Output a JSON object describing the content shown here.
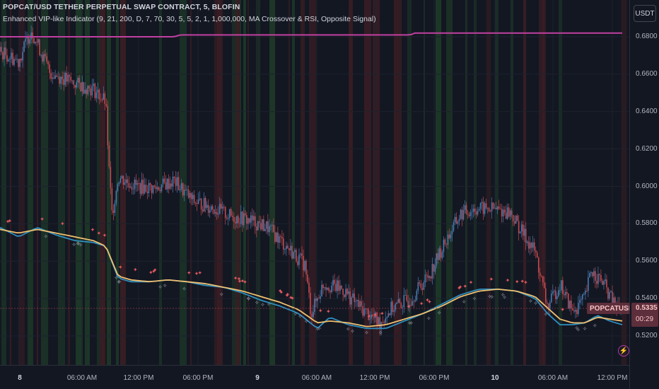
{
  "header": {
    "symbol_title": "POPCAT/USD TETHER PERPETUAL SWAP CONTRACT, 5, BLOFIN",
    "indicator_title": "Enhanced VIP-like Indicator (9, 21, 200, D, 7, 70, 30, 5, 5, 2, 1, 1,000,000, MA Crossover & RSI, Opposite Signal)"
  },
  "currency_button": "USDT",
  "price_axis": {
    "ticks": [
      "0.6800",
      "0.6600",
      "0.6400",
      "0.6200",
      "0.6000",
      "0.5800",
      "0.5600",
      "0.5400",
      "0.5200"
    ],
    "last_price": "0.5335",
    "countdown": "00:29"
  },
  "symbol_label": "POPCATUSDT.P",
  "time_axis": {
    "labels": [
      {
        "text": "8",
        "day": true
      },
      {
        "text": "06:00 AM",
        "day": false
      },
      {
        "text": "12:00 PM",
        "day": false
      },
      {
        "text": "06:00 PM",
        "day": false
      },
      {
        "text": "9",
        "day": true
      },
      {
        "text": "06:00 AM",
        "day": false
      },
      {
        "text": "12:00 PM",
        "day": false
      },
      {
        "text": "06:00 PM",
        "day": false
      },
      {
        "text": "10",
        "day": true
      },
      {
        "text": "06:00 AM",
        "day": false
      },
      {
        "text": "12:00 PM",
        "day": false
      }
    ]
  },
  "colors": {
    "background": "#131722",
    "candle_up": "#4a7ab0",
    "candle_down": "#c04a50",
    "ma_fast": "#2f8fc0",
    "ma_slow": "#f0c070",
    "ma_long": "#c040a0",
    "bg_green": "#1e3a28",
    "bg_red": "#3a1e24"
  },
  "chart_data": {
    "type": "candlestick",
    "y_range": [
      0.51,
      0.69
    ],
    "close_path": [
      [
        0,
        0.672
      ],
      [
        0.03,
        0.667
      ],
      [
        0.05,
        0.684
      ],
      [
        0.08,
        0.661
      ],
      [
        0.12,
        0.655
      ],
      [
        0.15,
        0.652
      ],
      [
        0.17,
        0.645
      ],
      [
        0.175,
        0.61
      ],
      [
        0.18,
        0.585
      ],
      [
        0.19,
        0.605
      ],
      [
        0.22,
        0.6
      ],
      [
        0.25,
        0.599
      ],
      [
        0.28,
        0.603
      ],
      [
        0.31,
        0.592
      ],
      [
        0.34,
        0.589
      ],
      [
        0.37,
        0.584
      ],
      [
        0.4,
        0.582
      ],
      [
        0.43,
        0.578
      ],
      [
        0.46,
        0.568
      ],
      [
        0.49,
        0.558
      ],
      [
        0.5,
        0.532
      ],
      [
        0.52,
        0.548
      ],
      [
        0.55,
        0.545
      ],
      [
        0.58,
        0.535
      ],
      [
        0.61,
        0.527
      ],
      [
        0.63,
        0.535
      ],
      [
        0.66,
        0.54
      ],
      [
        0.69,
        0.553
      ],
      [
        0.72,
        0.573
      ],
      [
        0.74,
        0.585
      ],
      [
        0.76,
        0.588
      ],
      [
        0.79,
        0.588
      ],
      [
        0.82,
        0.586
      ],
      [
        0.84,
        0.575
      ],
      [
        0.86,
        0.565
      ],
      [
        0.88,
        0.535
      ],
      [
        0.9,
        0.548
      ],
      [
        0.92,
        0.533
      ],
      [
        0.94,
        0.54
      ],
      [
        0.95,
        0.555
      ],
      [
        0.97,
        0.548
      ],
      [
        0.99,
        0.535
      ],
      [
        1.0,
        0.534
      ]
    ],
    "ma_fast_path": [
      [
        0,
        0.578
      ],
      [
        0.03,
        0.573
      ],
      [
        0.06,
        0.578
      ],
      [
        0.09,
        0.574
      ],
      [
        0.12,
        0.571
      ],
      [
        0.15,
        0.57
      ],
      [
        0.17,
        0.568
      ],
      [
        0.19,
        0.551
      ],
      [
        0.21,
        0.549
      ],
      [
        0.24,
        0.549
      ],
      [
        0.27,
        0.55
      ],
      [
        0.3,
        0.549
      ],
      [
        0.33,
        0.547
      ],
      [
        0.36,
        0.546
      ],
      [
        0.39,
        0.543
      ],
      [
        0.42,
        0.539
      ],
      [
        0.45,
        0.536
      ],
      [
        0.48,
        0.532
      ],
      [
        0.51,
        0.524
      ],
      [
        0.53,
        0.53
      ],
      [
        0.56,
        0.526
      ],
      [
        0.59,
        0.524
      ],
      [
        0.62,
        0.524
      ],
      [
        0.65,
        0.528
      ],
      [
        0.68,
        0.532
      ],
      [
        0.71,
        0.537
      ],
      [
        0.74,
        0.542
      ],
      [
        0.77,
        0.545
      ],
      [
        0.8,
        0.545
      ],
      [
        0.83,
        0.544
      ],
      [
        0.86,
        0.54
      ],
      [
        0.88,
        0.532
      ],
      [
        0.9,
        0.526
      ],
      [
        0.92,
        0.526
      ],
      [
        0.94,
        0.527
      ],
      [
        0.96,
        0.531
      ],
      [
        0.98,
        0.528
      ],
      [
        1.0,
        0.526
      ]
    ],
    "ma_slow_path": [
      [
        0,
        0.577
      ],
      [
        0.03,
        0.575
      ],
      [
        0.06,
        0.577
      ],
      [
        0.09,
        0.575
      ],
      [
        0.12,
        0.573
      ],
      [
        0.15,
        0.571
      ],
      [
        0.17,
        0.568
      ],
      [
        0.19,
        0.552
      ],
      [
        0.21,
        0.55
      ],
      [
        0.24,
        0.549
      ],
      [
        0.27,
        0.55
      ],
      [
        0.3,
        0.549
      ],
      [
        0.33,
        0.548
      ],
      [
        0.36,
        0.546
      ],
      [
        0.39,
        0.544
      ],
      [
        0.42,
        0.541
      ],
      [
        0.45,
        0.538
      ],
      [
        0.48,
        0.534
      ],
      [
        0.51,
        0.527
      ],
      [
        0.53,
        0.528
      ],
      [
        0.56,
        0.527
      ],
      [
        0.59,
        0.525
      ],
      [
        0.62,
        0.526
      ],
      [
        0.65,
        0.529
      ],
      [
        0.68,
        0.532
      ],
      [
        0.71,
        0.536
      ],
      [
        0.74,
        0.541
      ],
      [
        0.77,
        0.544
      ],
      [
        0.8,
        0.545
      ],
      [
        0.83,
        0.544
      ],
      [
        0.86,
        0.541
      ],
      [
        0.88,
        0.535
      ],
      [
        0.9,
        0.529
      ],
      [
        0.92,
        0.527
      ],
      [
        0.94,
        0.527
      ],
      [
        0.96,
        0.53
      ],
      [
        0.98,
        0.529
      ],
      [
        1.0,
        0.528
      ]
    ],
    "ma_long_path": [
      [
        0,
        0.68
      ],
      [
        0.28,
        0.68
      ],
      [
        0.29,
        0.681
      ],
      [
        0.66,
        0.681
      ],
      [
        0.665,
        0.682
      ],
      [
        1.0,
        0.682
      ]
    ]
  }
}
